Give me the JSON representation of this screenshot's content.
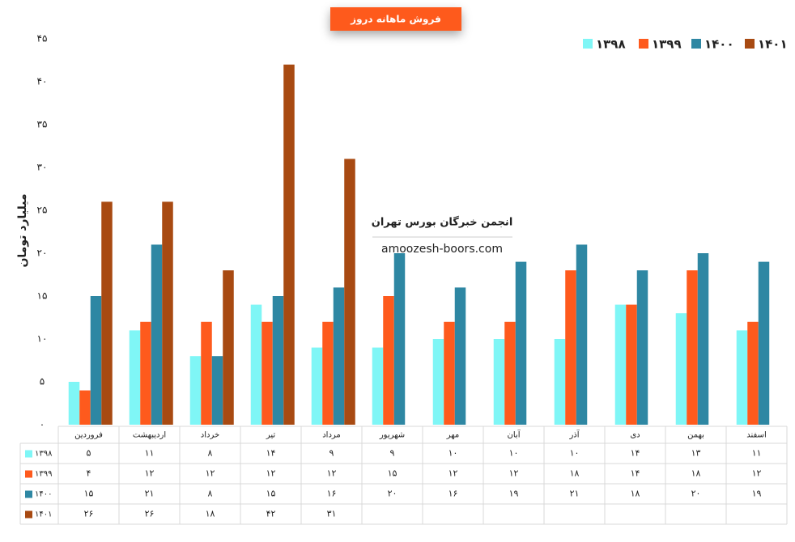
{
  "chart_data": {
    "type": "bar",
    "title": "فروش ماهانه دروز",
    "y_label": "میلیارد تومان",
    "watermark": {
      "title": "انجمن خبرگان بورس تهران",
      "url": "amoozesh-boors.com"
    },
    "categories": [
      "فروردین",
      "اردیبهشت",
      "خرداد",
      "تیر",
      "مرداد",
      "شهریور",
      "مهر",
      "آبان",
      "آذر",
      "دی",
      "بهمن",
      "اسفند"
    ],
    "series": [
      {
        "name": "۱۳۹۸",
        "color": "#7ff6f6",
        "values": [
          5,
          11,
          8,
          14,
          9,
          9,
          10,
          10,
          10,
          14,
          13,
          11
        ],
        "value_labels": [
          "۵",
          "۱۱",
          "۸",
          "۱۴",
          "۹",
          "۹",
          "۱۰",
          "۱۰",
          "۱۰",
          "۱۴",
          "۱۳",
          "۱۱"
        ]
      },
      {
        "name": "۱۳۹۹",
        "color": "#fe5a1d",
        "values": [
          4,
          12,
          12,
          12,
          12,
          15,
          12,
          12,
          18,
          14,
          18,
          12
        ],
        "value_labels": [
          "۴",
          "۱۲",
          "۱۲",
          "۱۲",
          "۱۲",
          "۱۵",
          "۱۲",
          "۱۲",
          "۱۸",
          "۱۴",
          "۱۸",
          "۱۲"
        ]
      },
      {
        "name": "۱۴۰۰",
        "color": "#2e87a3",
        "values": [
          15,
          21,
          8,
          15,
          16,
          20,
          16,
          19,
          21,
          18,
          20,
          19
        ],
        "value_labels": [
          "۱۵",
          "۲۱",
          "۸",
          "۱۵",
          "۱۶",
          "۲۰",
          "۱۶",
          "۱۹",
          "۲۱",
          "۱۸",
          "۲۰",
          "۱۹"
        ]
      },
      {
        "name": "۱۴۰۱",
        "color": "#a84a12",
        "values": [
          26,
          26,
          18,
          42,
          31,
          null,
          null,
          null,
          null,
          null,
          null,
          null
        ],
        "value_labels": [
          "۲۶",
          "۲۶",
          "۱۸",
          "۴۲",
          "۳۱",
          null,
          null,
          null,
          null,
          null,
          null,
          null
        ]
      }
    ],
    "ylim": [
      0,
      45
    ],
    "yticks": [
      {
        "value": 0,
        "label": "۰"
      },
      {
        "value": 5,
        "label": "۵"
      },
      {
        "value": 10,
        "label": "۱۰"
      },
      {
        "value": 15,
        "label": "۱۵"
      },
      {
        "value": 20,
        "label": "۲۰"
      },
      {
        "value": 25,
        "label": "۲۵"
      },
      {
        "value": 30,
        "label": "۳۰"
      },
      {
        "value": 35,
        "label": "۳۵"
      },
      {
        "value": 40,
        "label": "۴۰"
      },
      {
        "value": 45,
        "label": "۴۵"
      }
    ],
    "legend": "top-right"
  }
}
